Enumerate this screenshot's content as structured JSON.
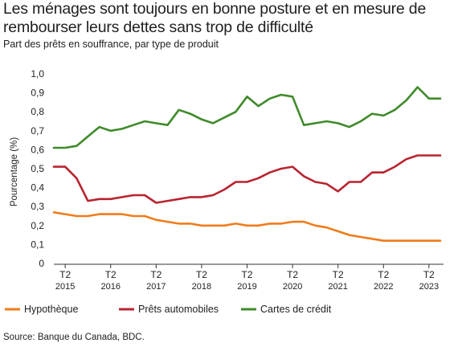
{
  "title": "Les ménages sont toujours en bonne posture et en mesure de rembourser leurs dettes sans trop de difficulté",
  "subtitle": "Part des prêts en souffrance, par type de produit",
  "source": "Source: Banque du Canada, BDC.",
  "chart_data": {
    "type": "line",
    "ylabel": "Pourcentage (%)",
    "xlabel": "",
    "ylim": [
      0,
      1.0
    ],
    "yticks": [
      "0",
      "0,1",
      "0,2",
      "0,3",
      "0,4",
      "0,5",
      "0,6",
      "0,7",
      "0,8",
      "0,9",
      "1,0"
    ],
    "xticks": [
      {
        "top": "T2",
        "bottom": "2015"
      },
      {
        "top": "T2",
        "bottom": "2016"
      },
      {
        "top": "T2",
        "bottom": "2017"
      },
      {
        "top": "T2",
        "bottom": "2018"
      },
      {
        "top": "T2",
        "bottom": "2019"
      },
      {
        "top": "T2",
        "bottom": "2020"
      },
      {
        "top": "T2",
        "bottom": "2021"
      },
      {
        "top": "T2",
        "bottom": "2022"
      },
      {
        "top": "T2",
        "bottom": "2023"
      }
    ],
    "x": [
      "T1 2015",
      "T2 2015",
      "T3 2015",
      "T4 2015",
      "T1 2016",
      "T2 2016",
      "T3 2016",
      "T4 2016",
      "T1 2017",
      "T2 2017",
      "T3 2017",
      "T4 2017",
      "T1 2018",
      "T2 2018",
      "T3 2018",
      "T4 2018",
      "T1 2019",
      "T2 2019",
      "T3 2019",
      "T4 2019",
      "T1 2020",
      "T2 2020",
      "T3 2020",
      "T4 2020",
      "T1 2021",
      "T2 2021",
      "T3 2021",
      "T4 2021",
      "T1 2022",
      "T2 2022",
      "T3 2022",
      "T4 2022",
      "T1 2023",
      "T2 2023",
      "T3 2023"
    ],
    "grid": false,
    "legend_position": "bottom",
    "series": [
      {
        "name": "Hypothèque",
        "color": "#f07c1a",
        "values": [
          0.27,
          0.26,
          0.25,
          0.25,
          0.26,
          0.26,
          0.26,
          0.25,
          0.25,
          0.23,
          0.22,
          0.21,
          0.21,
          0.2,
          0.2,
          0.2,
          0.21,
          0.2,
          0.2,
          0.21,
          0.21,
          0.22,
          0.22,
          0.2,
          0.19,
          0.17,
          0.15,
          0.14,
          0.13,
          0.12,
          0.12,
          0.12,
          0.12,
          0.12,
          0.12
        ]
      },
      {
        "name": "Prêts automobiles",
        "color": "#b8232f",
        "values": [
          0.51,
          0.51,
          0.45,
          0.33,
          0.34,
          0.34,
          0.35,
          0.36,
          0.36,
          0.32,
          0.33,
          0.34,
          0.35,
          0.35,
          0.36,
          0.39,
          0.43,
          0.43,
          0.45,
          0.48,
          0.5,
          0.51,
          0.46,
          0.43,
          0.42,
          0.38,
          0.43,
          0.43,
          0.48,
          0.48,
          0.51,
          0.55,
          0.57,
          0.57,
          0.57
        ]
      },
      {
        "name": "Cartes de crédit",
        "color": "#3f8a2a",
        "values": [
          0.61,
          0.61,
          0.62,
          0.67,
          0.72,
          0.7,
          0.71,
          0.73,
          0.75,
          0.74,
          0.73,
          0.81,
          0.79,
          0.76,
          0.74,
          0.77,
          0.8,
          0.88,
          0.83,
          0.87,
          0.89,
          0.88,
          0.73,
          0.74,
          0.75,
          0.74,
          0.72,
          0.75,
          0.79,
          0.78,
          0.81,
          0.86,
          0.93,
          0.87,
          0.87
        ]
      }
    ]
  }
}
